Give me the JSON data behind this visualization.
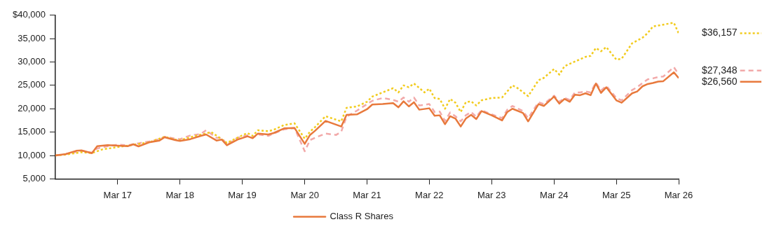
{
  "chart_data": {
    "type": "line",
    "xlim": [
      "2016-03",
      "2026-03"
    ],
    "xticks": [
      {
        "value": "2017-03",
        "label": "Mar 17"
      },
      {
        "value": "2018-03",
        "label": "Mar 18"
      },
      {
        "value": "2019-03",
        "label": "Mar 19"
      },
      {
        "value": "2020-03",
        "label": "Mar 20"
      },
      {
        "value": "2021-03",
        "label": "Mar 21"
      },
      {
        "value": "2022-03",
        "label": "Mar 22"
      },
      {
        "value": "2023-03",
        "label": "Mar 23"
      },
      {
        "value": "2024-03",
        "label": "Mar 24"
      },
      {
        "value": "2025-03",
        "label": "Mar 25"
      },
      {
        "value": "2026-03",
        "label": "Mar 26"
      }
    ],
    "ylim": [
      5000,
      40000
    ],
    "yticks": [
      {
        "value": 5000,
        "label": "5,000"
      },
      {
        "value": 10000,
        "label": "10,000"
      },
      {
        "value": 15000,
        "label": "15,000"
      },
      {
        "value": 20000,
        "label": "20,000"
      },
      {
        "value": 25000,
        "label": "25,000"
      },
      {
        "value": 30000,
        "label": "30,000"
      },
      {
        "value": 35000,
        "label": "35,000"
      },
      {
        "value": 40000,
        "label": "$40,000"
      }
    ],
    "grid": false,
    "legend": "bottom",
    "series": [
      {
        "name": "Class R Shares",
        "color": "#e8793c",
        "line_style": "solid",
        "x": [
          "2016-03",
          "2016-05",
          "2016-07",
          "2016-08",
          "2016-10",
          "2016-11",
          "2017-01",
          "2017-03",
          "2017-05",
          "2017-06",
          "2017-07",
          "2017-09",
          "2017-11",
          "2017-12",
          "2018-02",
          "2018-03",
          "2018-05",
          "2018-07",
          "2018-08",
          "2018-10",
          "2018-11",
          "2018-12",
          "2019-02",
          "2019-04",
          "2019-05",
          "2019-06",
          "2019-08",
          "2019-09",
          "2019-11",
          "2020-01",
          "2020-03",
          "2020-04",
          "2020-05",
          "2020-07",
          "2020-10",
          "2020-11",
          "2021-01",
          "2021-03",
          "2021-04",
          "2021-06",
          "2021-08",
          "2021-09",
          "2021-10",
          "2021-11",
          "2021-12",
          "2022-01",
          "2022-03",
          "2022-04",
          "2022-05",
          "2022-06",
          "2022-07",
          "2022-08",
          "2022-09",
          "2022-10",
          "2022-11",
          "2022-12",
          "2023-01",
          "2023-03",
          "2023-05",
          "2023-06",
          "2023-07",
          "2023-09",
          "2023-10",
          "2023-12",
          "2024-01",
          "2024-03",
          "2024-04",
          "2024-05",
          "2024-06",
          "2024-07",
          "2024-08",
          "2024-09",
          "2024-10",
          "2024-11",
          "2024-12",
          "2025-01",
          "2025-03",
          "2025-04",
          "2025-06",
          "2025-07",
          "2025-08",
          "2025-09",
          "2025-10",
          "2025-11",
          "2025-12",
          "2026-02",
          "2026-03"
        ],
        "values": [
          10000,
          10300,
          11000,
          11100,
          10500,
          12000,
          12200,
          12100,
          12000,
          12400,
          11950,
          12800,
          13200,
          13900,
          13300,
          13100,
          13500,
          14200,
          14500,
          13200,
          13400,
          12200,
          13400,
          14100,
          13700,
          14700,
          14500,
          14800,
          15800,
          15900,
          12500,
          14400,
          15300,
          17400,
          16200,
          18700,
          18800,
          19900,
          20900,
          21000,
          21200,
          20300,
          21600,
          20500,
          21400,
          19800,
          20100,
          18500,
          18600,
          16700,
          18400,
          17900,
          16200,
          17900,
          18700,
          17800,
          19500,
          18600,
          17500,
          19300,
          20000,
          19100,
          17300,
          21000,
          20600,
          22600,
          21100,
          22100,
          21500,
          23000,
          22900,
          23300,
          22900,
          25400,
          23400,
          24600,
          21800,
          21300,
          23300,
          23700,
          24800,
          25300,
          25500,
          25800,
          25900,
          27800,
          26560
        ]
      },
      {
        "color": "#f2cb1d",
        "line_style": "dotted",
        "x": [
          "2016-03",
          "2016-05",
          "2016-08",
          "2016-10",
          "2016-12",
          "2017-03",
          "2017-06",
          "2017-09",
          "2017-12",
          "2018-02",
          "2018-03",
          "2018-06",
          "2018-09",
          "2018-12",
          "2019-03",
          "2019-04",
          "2019-05",
          "2019-06",
          "2019-08",
          "2019-09",
          "2019-11",
          "2020-01",
          "2020-03",
          "2020-04",
          "2020-05",
          "2020-07",
          "2020-10",
          "2020-11",
          "2021-01",
          "2021-03",
          "2021-04",
          "2021-06",
          "2021-08",
          "2021-09",
          "2021-10",
          "2021-11",
          "2021-12",
          "2022-02",
          "2022-03",
          "2022-04",
          "2022-05",
          "2022-06",
          "2022-07",
          "2022-08",
          "2022-09",
          "2022-10",
          "2022-11",
          "2022-12",
          "2023-01",
          "2023-03",
          "2023-05",
          "2023-07",
          "2023-08",
          "2023-10",
          "2023-12",
          "2024-01",
          "2024-03",
          "2024-04",
          "2024-05",
          "2024-07",
          "2024-09",
          "2024-10",
          "2024-11",
          "2024-12",
          "2025-01",
          "2025-03",
          "2025-04",
          "2025-06",
          "2025-08",
          "2025-09",
          "2025-10",
          "2025-11",
          "2025-12",
          "2026-02",
          "2026-03"
        ],
        "values": [
          10000,
          10200,
          10700,
          10500,
          11300,
          11800,
          12300,
          12800,
          14000,
          13400,
          13300,
          14200,
          15000,
          12700,
          14300,
          14800,
          14200,
          15400,
          15200,
          15500,
          16500,
          16900,
          13600,
          15100,
          16100,
          18400,
          17300,
          20200,
          20500,
          21500,
          22600,
          23500,
          24400,
          23500,
          25000,
          24600,
          25400,
          23500,
          24300,
          22300,
          22100,
          20000,
          22100,
          21300,
          19300,
          21400,
          21600,
          20700,
          21800,
          22300,
          22400,
          25000,
          24400,
          22700,
          26100,
          26600,
          28500,
          27300,
          29100,
          30100,
          31100,
          31300,
          33000,
          32300,
          33200,
          30500,
          30700,
          34000,
          35200,
          36200,
          37600,
          37800,
          38000,
          38400,
          36157
        ]
      },
      {
        "color": "#f2a9a9",
        "line_style": "dashed",
        "x": [
          "2016-03",
          "2016-05",
          "2016-08",
          "2016-10",
          "2016-11",
          "2017-01",
          "2017-03",
          "2017-05",
          "2017-07",
          "2017-09",
          "2017-11",
          "2017-12",
          "2018-02",
          "2018-03",
          "2018-05",
          "2018-07",
          "2018-08",
          "2018-10",
          "2018-11",
          "2018-12",
          "2019-02",
          "2019-04",
          "2019-05",
          "2019-06",
          "2019-08",
          "2019-09",
          "2019-11",
          "2020-01",
          "2020-03",
          "2020-04",
          "2020-05",
          "2020-07",
          "2020-09",
          "2020-10",
          "2020-11",
          "2021-01",
          "2021-03",
          "2021-04",
          "2021-06",
          "2021-08",
          "2021-09",
          "2021-10",
          "2021-11",
          "2021-12",
          "2022-01",
          "2022-03",
          "2022-04",
          "2022-05",
          "2022-06",
          "2022-07",
          "2022-08",
          "2022-09",
          "2022-10",
          "2022-11",
          "2022-12",
          "2023-01",
          "2023-03",
          "2023-05",
          "2023-06",
          "2023-07",
          "2023-09",
          "2023-10",
          "2023-12",
          "2024-01",
          "2024-03",
          "2024-04",
          "2024-05",
          "2024-06",
          "2024-07",
          "2024-08",
          "2024-09",
          "2024-10",
          "2024-11",
          "2024-12",
          "2025-01",
          "2025-03",
          "2025-04",
          "2025-06",
          "2025-07",
          "2025-08",
          "2025-09",
          "2025-10",
          "2025-11",
          "2025-12",
          "2026-02",
          "2026-03"
        ],
        "values": [
          10000,
          10300,
          11000,
          10600,
          11500,
          12000,
          12300,
          12200,
          12600,
          13000,
          13500,
          14000,
          13600,
          13500,
          14300,
          14600,
          15400,
          13800,
          13800,
          12300,
          13800,
          14300,
          13800,
          14500,
          14200,
          14700,
          15600,
          15900,
          10900,
          13300,
          13800,
          14700,
          14400,
          15100,
          18300,
          19600,
          21000,
          21700,
          22300,
          21900,
          21500,
          22400,
          21500,
          22400,
          20700,
          21000,
          19300,
          19400,
          17400,
          19200,
          18400,
          17300,
          18600,
          19300,
          18300,
          19700,
          18800,
          18000,
          19800,
          20600,
          19500,
          18000,
          21400,
          21000,
          22800,
          21500,
          22300,
          21900,
          23500,
          23500,
          23700,
          23500,
          25600,
          23900,
          24900,
          22300,
          21800,
          24000,
          24600,
          25500,
          26300,
          26500,
          26800,
          26900,
          28900,
          27348
        ]
      }
    ],
    "annotations": [
      {
        "text": "$36,157",
        "x": "2026-03",
        "y": 36157
      },
      {
        "text": "$27,348",
        "x": "2026-03",
        "y": 27348
      },
      {
        "text": "$26,560",
        "x": "2026-03",
        "y": 26560
      }
    ]
  }
}
